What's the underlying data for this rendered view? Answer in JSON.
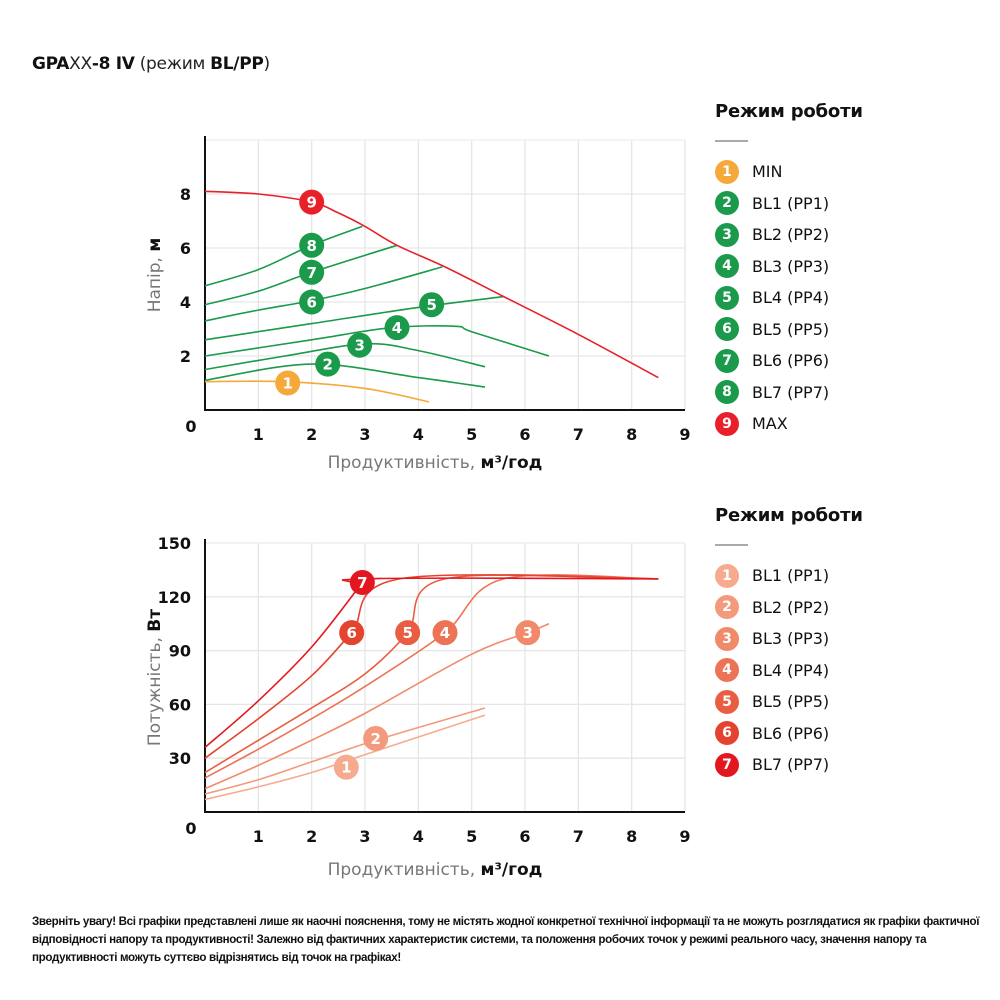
{
  "title": {
    "part1": "GPA",
    "part2": "XX",
    "part3": "-8 IV",
    "part4": " (режим ",
    "part5": "BL/PP",
    "part6": ")"
  },
  "chart_data": [
    {
      "type": "line",
      "xlabel": "Продуктивність,",
      "xlabel_unit": "м³/год",
      "ylabel": "Напір,",
      "ylabel_unit": "м",
      "xlim": [
        0,
        9
      ],
      "ylim": [
        0,
        10
      ],
      "xticks": [
        "0",
        "1",
        "2",
        "3",
        "4",
        "5",
        "6",
        "7",
        "8",
        "9"
      ],
      "yticks": [
        "2",
        "4",
        "6",
        "8"
      ],
      "grid": true,
      "legend": {
        "title": "Режим роботи",
        "placement": "right"
      },
      "series": [
        {
          "name": "MIN",
          "marker": "1",
          "color": "#f5a93b",
          "label_at": [
            1.55,
            1.0
          ],
          "points": [
            [
              0,
              1.05
            ],
            [
              1.5,
              1.05
            ],
            [
              3,
              0.8
            ],
            [
              4.2,
              0.3
            ]
          ]
        },
        {
          "name": "BL1 (PP1)",
          "marker": "2",
          "color": "#1b9a4b",
          "label_at": [
            2.3,
            1.7
          ],
          "points": [
            [
              0,
              1.1
            ],
            [
              2,
              1.7
            ],
            [
              4,
              1.2
            ],
            [
              5.25,
              0.85
            ]
          ]
        },
        {
          "name": "BL2 (PP2)",
          "marker": "3",
          "color": "#1b9a4b",
          "label_at": [
            2.9,
            2.4
          ],
          "points": [
            [
              0,
              1.5
            ],
            [
              1.5,
              2.0
            ],
            [
              3,
              2.45
            ],
            [
              4,
              2.2
            ],
            [
              5.25,
              1.6
            ]
          ]
        },
        {
          "name": "BL3 (PP3)",
          "marker": "4",
          "color": "#1b9a4b",
          "label_at": [
            3.6,
            3.05
          ],
          "points": [
            [
              0,
              2.0
            ],
            [
              2,
              2.6
            ],
            [
              3.5,
              3.05
            ],
            [
              4.7,
              3.1
            ],
            [
              5.0,
              2.9
            ],
            [
              6.45,
              2.0
            ]
          ]
        },
        {
          "name": "BL4 (PP4)",
          "marker": "5",
          "color": "#1b9a4b",
          "label_at": [
            4.25,
            3.9
          ],
          "points": [
            [
              0,
              2.6
            ],
            [
              2,
              3.2
            ],
            [
              4,
              3.8
            ],
            [
              5.6,
              4.2
            ]
          ]
        },
        {
          "name": "BL5 (PP5)",
          "marker": "6",
          "color": "#1b9a4b",
          "label_at": [
            2,
            4.0
          ],
          "points": [
            [
              0,
              3.3
            ],
            [
              1,
              3.7
            ],
            [
              2,
              4.05
            ],
            [
              3,
              4.5
            ],
            [
              4.45,
              5.3
            ]
          ]
        },
        {
          "name": "BL6 (PP6)",
          "marker": "7",
          "color": "#1b9a4b",
          "label_at": [
            2,
            5.1
          ],
          "points": [
            [
              0,
              3.9
            ],
            [
              1,
              4.4
            ],
            [
              2,
              5.1
            ],
            [
              3.6,
              6.1
            ]
          ]
        },
        {
          "name": "BL7 (PP7)",
          "marker": "8",
          "color": "#1b9a4b",
          "label_at": [
            2,
            6.1
          ],
          "points": [
            [
              0,
              4.6
            ],
            [
              1,
              5.2
            ],
            [
              2,
              6.1
            ],
            [
              2.95,
              6.8
            ]
          ]
        },
        {
          "name": "MAX",
          "marker": "9",
          "color": "#e8202a",
          "label_at": [
            2,
            7.7
          ],
          "points": [
            [
              0,
              8.1
            ],
            [
              1,
              8.0
            ],
            [
              2,
              7.7
            ],
            [
              2.5,
              7.3
            ],
            [
              3,
              6.8
            ],
            [
              3.6,
              6.1
            ],
            [
              4.5,
              5.3
            ],
            [
              5.6,
              4.2
            ],
            [
              7,
              2.8
            ],
            [
              8.5,
              1.2
            ]
          ]
        }
      ]
    },
    {
      "type": "line",
      "xlabel": "Продуктивність,",
      "xlabel_unit": "м³/год",
      "ylabel": "Потужність,",
      "ylabel_unit": "Вт",
      "xlim": [
        0,
        9
      ],
      "ylim": [
        0,
        150
      ],
      "xticks": [
        "0",
        "1",
        "2",
        "3",
        "4",
        "5",
        "6",
        "7",
        "8",
        "9"
      ],
      "yticks": [
        "30",
        "60",
        "90",
        "120",
        "150"
      ],
      "grid": true,
      "legend": {
        "title": "Режим роботи",
        "placement": "right"
      },
      "series": [
        {
          "name": "BL1 (PP1)",
          "marker": "1",
          "color": "#f6ab90",
          "label_at": [
            2.65,
            25
          ],
          "points": [
            [
              0,
              7
            ],
            [
              1,
              14
            ],
            [
              2,
              22
            ],
            [
              3,
              32
            ],
            [
              5.25,
              54
            ]
          ]
        },
        {
          "name": "BL2 (PP2)",
          "marker": "2",
          "color": "#f39a7c",
          "label_at": [
            3.2,
            41
          ],
          "points": [
            [
              0,
              10
            ],
            [
              1,
              18
            ],
            [
              2,
              28
            ],
            [
              3.2,
              40
            ],
            [
              5.25,
              58
            ]
          ]
        },
        {
          "name": "BL3 (PP3)",
          "marker": "3",
          "color": "#f08a6a",
          "label_at": [
            6.05,
            100
          ],
          "points": [
            [
              0,
              13
            ],
            [
              1,
              26
            ],
            [
              2,
              40
            ],
            [
              3,
              55
            ],
            [
              5,
              88
            ],
            [
              6.05,
              100
            ],
            [
              6.45,
              105
            ]
          ]
        },
        {
          "name": "BL4 (PP4)",
          "marker": "4",
          "color": "#ec7356",
          "label_at": [
            4.5,
            100
          ],
          "points": [
            [
              0,
              19
            ],
            [
              1,
              35
            ],
            [
              2,
              52
            ],
            [
              3,
              70
            ],
            [
              4.5,
              100
            ],
            [
              5.6,
              130
            ],
            [
              8.5,
              130
            ]
          ]
        },
        {
          "name": "BL5 (PP5)",
          "marker": "5",
          "color": "#e95e42",
          "label_at": [
            3.8,
            100
          ],
          "points": [
            [
              0,
              22
            ],
            [
              1,
              40
            ],
            [
              2,
              58
            ],
            [
              3,
              77
            ],
            [
              3.8,
              100
            ],
            [
              4.5,
              130
            ],
            [
              8.5,
              130
            ]
          ]
        },
        {
          "name": "BL6 (PP6)",
          "marker": "6",
          "color": "#e4432f",
          "label_at": [
            2.75,
            100
          ],
          "points": [
            [
              0,
              30
            ],
            [
              1,
              52
            ],
            [
              2,
              76
            ],
            [
              2.75,
              100
            ],
            [
              3.65,
              130
            ],
            [
              8.5,
              130
            ]
          ]
        },
        {
          "name": "BL7 (PP7)",
          "marker": "7",
          "color": "#e3171f",
          "label_at": [
            2.95,
            128
          ],
          "points": [
            [
              0,
              36
            ],
            [
              1,
              62
            ],
            [
              2,
              92
            ],
            [
              2.85,
              124
            ],
            [
              3.0,
              130
            ],
            [
              8.5,
              130
            ]
          ]
        }
      ]
    }
  ],
  "note": "Зверніть увагу! Всі графіки представлені лише як наочні пояснення, тому не містять жодної конкретної технічної інформації та не можуть розглядатися як графіки фактичної відповідності напору та продуктивності! Залежно від фактичних характеристик системи, та положення робочих точок у режимі реального часу, значення напору та продуктивності можуть суттєво відрізнятись від точок на графіках!"
}
